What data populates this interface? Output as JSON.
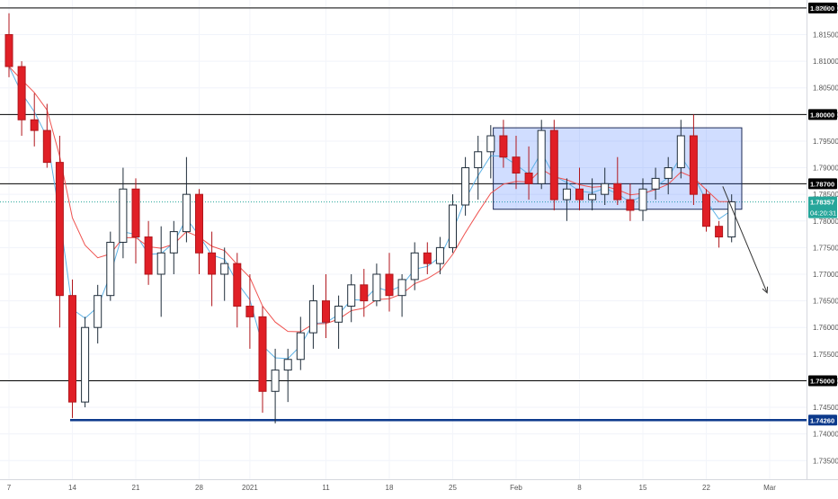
{
  "chart_data": {
    "type": "candlestick",
    "currency": "AUD",
    "series": [
      {
        "name": "",
        "kind": "ema-fast"
      },
      {
        "name": "",
        "kind": "ema-slow"
      }
    ],
    "y_ticks": [
      "1.82000",
      "1.81500",
      "1.81000",
      "1.80500",
      "1.80000",
      "1.79500",
      "1.79000",
      "1.78500",
      "1.78000",
      "1.77500",
      "1.77000",
      "1.76500",
      "1.76000",
      "1.75500",
      "1.75000",
      "1.74500",
      "1.74000",
      "1.73500"
    ],
    "ylim": [
      1.7315,
      1.8215
    ],
    "x_ticks": [
      {
        "label": "7",
        "x": 0
      },
      {
        "label": "14",
        "x": 5
      },
      {
        "label": "21",
        "x": 10
      },
      {
        "label": "28",
        "x": 15
      },
      {
        "label": "2021",
        "x": 19
      },
      {
        "label": "11",
        "x": 25
      },
      {
        "label": "18",
        "x": 30
      },
      {
        "label": "25",
        "x": 35
      },
      {
        "label": "Feb",
        "x": 40
      },
      {
        "label": "8",
        "x": 45
      },
      {
        "label": "15",
        "x": 50
      },
      {
        "label": "22",
        "x": 55
      },
      {
        "label": "Mar",
        "x": 60
      }
    ],
    "horizontal_levels": [
      {
        "value": 1.82,
        "color": "#000000",
        "label": "1.82000"
      },
      {
        "value": 1.8,
        "color": "#000000",
        "label": "1.80000"
      },
      {
        "value": 1.787,
        "color": "#000000",
        "label": "1.78700"
      },
      {
        "value": 1.75,
        "color": "#000000",
        "label": "1.75000"
      },
      {
        "value": 1.7426,
        "color": "#0d3a8c",
        "label": "1.74260"
      }
    ],
    "current_price": {
      "value": 1.78357,
      "label": "1.78357",
      "countdown": "04:20:31"
    },
    "range_box": {
      "x0": 38.2,
      "x1": 57.8,
      "y_top": 1.7975,
      "y_bottom": 1.7822
    },
    "arrow": {
      "x0": 56.3,
      "y0": 1.7865,
      "x1": 59.8,
      "y1": 1.7665
    },
    "candles": [
      [
        1.815,
        1.819,
        1.807,
        1.809
      ],
      [
        1.809,
        1.81,
        1.796,
        1.799
      ],
      [
        1.799,
        1.804,
        1.794,
        1.797
      ],
      [
        1.797,
        1.802,
        1.79,
        1.791
      ],
      [
        1.791,
        1.796,
        1.76,
        1.766
      ],
      [
        1.766,
        1.769,
        1.743,
        1.746
      ],
      [
        1.746,
        1.762,
        1.745,
        1.76
      ],
      [
        1.76,
        1.768,
        1.757,
        1.766
      ],
      [
        1.766,
        1.778,
        1.765,
        1.776
      ],
      [
        1.776,
        1.79,
        1.773,
        1.786
      ],
      [
        1.786,
        1.788,
        1.772,
        1.777
      ],
      [
        1.777,
        1.78,
        1.768,
        1.77
      ],
      [
        1.77,
        1.779,
        1.762,
        1.774
      ],
      [
        1.774,
        1.78,
        1.77,
        1.778
      ],
      [
        1.778,
        1.792,
        1.776,
        1.785
      ],
      [
        1.785,
        1.786,
        1.77,
        1.774
      ],
      [
        1.774,
        1.778,
        1.764,
        1.77
      ],
      [
        1.77,
        1.775,
        1.765,
        1.772
      ],
      [
        1.772,
        1.774,
        1.76,
        1.764
      ],
      [
        1.764,
        1.77,
        1.756,
        1.762
      ],
      [
        1.762,
        1.764,
        1.744,
        1.748
      ],
      [
        1.748,
        1.756,
        1.742,
        1.752
      ],
      [
        1.752,
        1.756,
        1.746,
        1.754
      ],
      [
        1.754,
        1.762,
        1.752,
        1.759
      ],
      [
        1.759,
        1.768,
        1.756,
        1.765
      ],
      [
        1.765,
        1.77,
        1.758,
        1.761
      ],
      [
        1.761,
        1.766,
        1.756,
        1.764
      ],
      [
        1.764,
        1.77,
        1.761,
        1.768
      ],
      [
        1.768,
        1.771,
        1.762,
        1.765
      ],
      [
        1.765,
        1.772,
        1.764,
        1.77
      ],
      [
        1.77,
        1.774,
        1.763,
        1.766
      ],
      [
        1.766,
        1.77,
        1.762,
        1.769
      ],
      [
        1.769,
        1.776,
        1.767,
        1.774
      ],
      [
        1.774,
        1.776,
        1.77,
        1.772
      ],
      [
        1.772,
        1.777,
        1.77,
        1.775
      ],
      [
        1.775,
        1.785,
        1.774,
        1.783
      ],
      [
        1.783,
        1.792,
        1.781,
        1.79
      ],
      [
        1.79,
        1.796,
        1.784,
        1.793
      ],
      [
        1.793,
        1.798,
        1.788,
        1.796
      ],
      [
        1.796,
        1.799,
        1.79,
        1.792
      ],
      [
        1.792,
        1.796,
        1.786,
        1.789
      ],
      [
        1.789,
        1.794,
        1.784,
        1.787
      ],
      [
        1.787,
        1.799,
        1.786,
        1.797
      ],
      [
        1.797,
        1.799,
        1.782,
        1.784
      ],
      [
        1.784,
        1.788,
        1.78,
        1.786
      ],
      [
        1.786,
        1.79,
        1.782,
        1.784
      ],
      [
        1.784,
        1.788,
        1.782,
        1.785
      ],
      [
        1.785,
        1.79,
        1.783,
        1.787
      ],
      [
        1.787,
        1.792,
        1.783,
        1.784
      ],
      [
        1.784,
        1.787,
        1.78,
        1.782
      ],
      [
        1.782,
        1.788,
        1.78,
        1.786
      ],
      [
        1.786,
        1.79,
        1.784,
        1.788
      ],
      [
        1.788,
        1.792,
        1.785,
        1.79
      ],
      [
        1.79,
        1.799,
        1.788,
        1.796
      ],
      [
        1.796,
        1.8,
        1.783,
        1.785
      ],
      [
        1.785,
        1.786,
        1.778,
        1.779
      ],
      [
        1.779,
        1.78,
        1.775,
        1.777
      ],
      [
        1.777,
        1.785,
        1.776,
        1.7836
      ]
    ]
  }
}
